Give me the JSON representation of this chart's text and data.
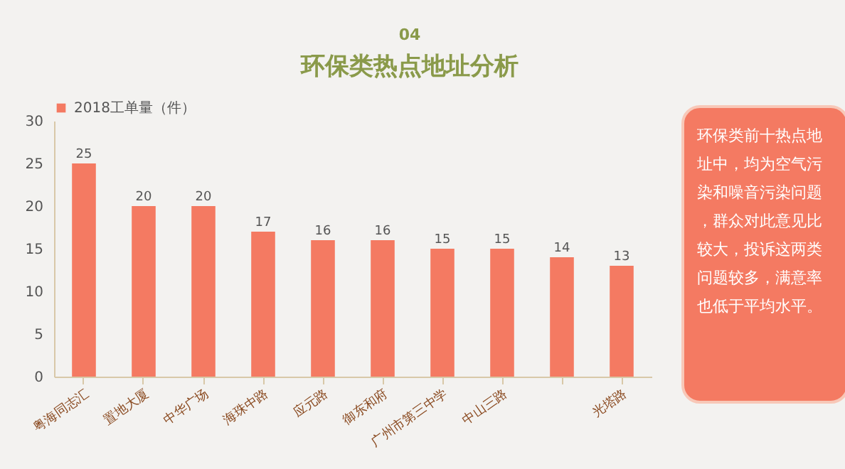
{
  "chart_data": {
    "type": "bar",
    "title": "环保类热点地址分析",
    "categories": [
      "粤海同志汇",
      "置地大厦",
      "中华广场",
      "海珠中路",
      "应元路",
      "御东和府",
      "广州市第三中学",
      "中山三路",
      null,
      "光塔路"
    ],
    "series": [
      {
        "name": "2018工单量（件）",
        "color": "#f47a62",
        "values": [
          25,
          20,
          20,
          17,
          16,
          16,
          15,
          15,
          14,
          13
        ]
      }
    ],
    "ylim": [
      0,
      30
    ],
    "yticks": [
      0,
      5,
      10,
      15,
      20,
      25,
      30
    ],
    "data_labels": true,
    "legend": "top",
    "grid": false,
    "annotations": [
      "04",
      "环保类前十热点地址中，均为空气污染和噪音污染问题，群众对此意见比较大，投诉这两类问题较多，满意率也低于平均水平。"
    ]
  }
}
